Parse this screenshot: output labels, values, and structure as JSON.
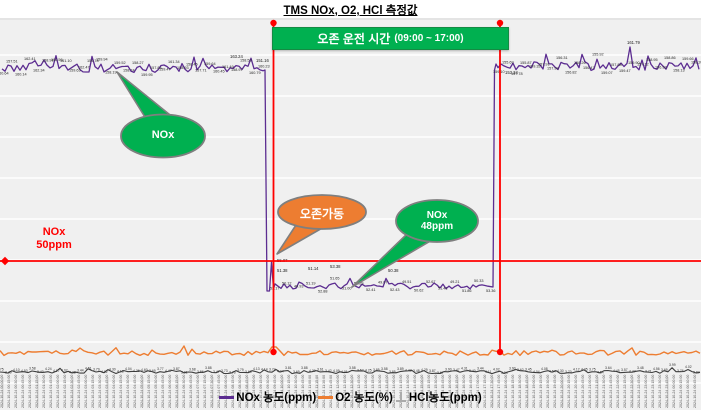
{
  "title": "TMS NOx, O2, HCl 측정값",
  "banner": {
    "text": "오존 운전 시간",
    "time_range": "(09:00 ~ 17:00)",
    "bg_color": "#00b050"
  },
  "reference": {
    "label_line1": "NOx",
    "label_line2": "50ppm",
    "value_ppm": 50,
    "color": "#ff0000"
  },
  "bubbles": {
    "nox": {
      "text": "NOx",
      "color": "#00b050"
    },
    "ozone": {
      "text": "오존가동",
      "color": "#ed7d31"
    },
    "nox48": {
      "line1": "NOx",
      "line2": "48ppm",
      "color": "#00b050"
    }
  },
  "legend": [
    {
      "label": "NOx 농도(ppm)",
      "color": "#5c2d91",
      "marker": "line"
    },
    {
      "label": "O2 농도(%)",
      "color": "#ed7d31",
      "marker": "line"
    },
    {
      "label": "HCl농도(ppm)",
      "color": "#ababab",
      "marker": "error-bar"
    }
  ],
  "chart_data": {
    "type": "line",
    "title": "TMS NOx, O2, HCl 측정값",
    "x_axis": {
      "date": "2024-10-24",
      "start_time": "00:00:00",
      "step_minutes": 15,
      "tick_count": 100,
      "label_format": "YYYY-MM-DD HH:MM:SS",
      "labels_rotated_deg": 90
    },
    "grid": "horizontal",
    "legend_position": "bottom",
    "reference_line": {
      "series": "NOx",
      "value": 50,
      "unit": "ppm",
      "color": "#ff0000"
    },
    "ozone_window": {
      "start": "09:00",
      "end": "17:00"
    },
    "series": [
      {
        "name": "NOx 농도(ppm)",
        "color": "#5c2d91",
        "unit": "ppm",
        "phases": [
          {
            "phase": "before_ozone",
            "mean": 160,
            "noise": 3
          },
          {
            "phase": "ozone_on",
            "mean": 51,
            "noise": 1.5
          },
          {
            "phase": "after_ozone",
            "mean": 158,
            "noise": 3
          }
        ],
        "labeled_points": {
          "before": [
            163.24
          ],
          "at_drop": [
            151.16
          ],
          "during": [
            55.07,
            51.38,
            51.14,
            53.38,
            50.38
          ],
          "after": [
            153.34,
            161.79
          ],
          "bubble_callout": 48
        }
      },
      {
        "name": "O2 농도(%)",
        "color": "#ed7d31",
        "unit": "%",
        "phases": [
          {
            "phase": "all",
            "behavior": "flat_noisy_low_band"
          }
        ]
      },
      {
        "name": "HCl농도(ppm)",
        "color": "#3f3f3f",
        "unit": "ppm",
        "phases": [
          {
            "phase": "all",
            "behavior": "flat_noisy_lowest_band_with_dense_labels"
          }
        ]
      }
    ]
  },
  "colors": {
    "plot_bg": "#f0f0f0",
    "gridline": "#fbfbfb",
    "tick_text": "#595959",
    "label_cloud": "#262626",
    "red": "#ff0000",
    "green": "#00b050",
    "orange": "#ed7d31",
    "purple": "#5c2d91",
    "bubble_border": "#7f7f7f"
  }
}
